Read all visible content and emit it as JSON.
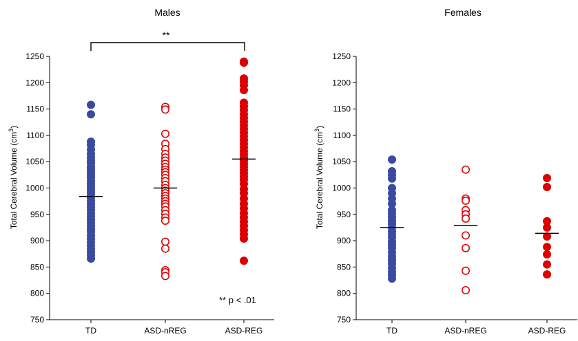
{
  "chart_data": [
    {
      "type": "scatter",
      "title": "Males",
      "ylabel": "Total Cerebral Volume (cm",
      "ylabel_sup": "3",
      "ylabel_close": ")",
      "categories": [
        "TD",
        "ASD-nREG",
        "ASD-REG"
      ],
      "ylim": [
        750,
        1250
      ],
      "yticks": [
        "750",
        "800",
        "850",
        "900",
        "950",
        "1000",
        "1050",
        "1100",
        "1150",
        "1200",
        "1250"
      ],
      "grid": false,
      "series": [
        {
          "category": "TD",
          "color": "#3a4aa0",
          "marker": "filled",
          "mean": 984,
          "values": [
            1158,
            1140,
            1088,
            1082,
            1073,
            1065,
            1058,
            1052,
            1047,
            1040,
            1035,
            1030,
            1025,
            1020,
            1013,
            1008,
            1003,
            998,
            992,
            987,
            982,
            976,
            970,
            964,
            958,
            952,
            946,
            940,
            934,
            928,
            922,
            917,
            910,
            903,
            897,
            891,
            884,
            878,
            872,
            866
          ]
        },
        {
          "category": "ASD-nREG",
          "color": "#dd0000",
          "marker": "open",
          "mean": 1000,
          "values": [
            1154,
            1149,
            1103,
            1084,
            1074,
            1065,
            1058,
            1052,
            1046,
            1040,
            1035,
            1030,
            1025,
            1019,
            1013,
            1006,
            1000,
            995,
            990,
            985,
            980,
            975,
            970,
            965,
            958,
            951,
            944,
            938,
            898,
            885,
            844,
            840,
            833
          ]
        },
        {
          "category": "ASD-REG",
          "color": "#dd0000",
          "marker": "filled",
          "mean": 1055,
          "values": [
            1240,
            1238,
            1208,
            1202,
            1195,
            1186,
            1162,
            1155,
            1148,
            1140,
            1133,
            1126,
            1119,
            1112,
            1105,
            1098,
            1091,
            1084,
            1077,
            1070,
            1064,
            1058,
            1052,
            1046,
            1040,
            1034,
            1028,
            1022,
            1016,
            1008,
            998,
            990,
            980,
            970,
            961,
            952,
            944,
            936,
            928,
            920,
            912,
            904,
            862
          ]
        }
      ],
      "annotations": {
        "bracket_label": "**",
        "note": "** p < .01"
      }
    },
    {
      "type": "scatter",
      "title": "Females",
      "ylabel": "Total Cerebral Volume (cm",
      "ylabel_sup": "3",
      "ylabel_close": ")",
      "categories": [
        "TD",
        "ASD-nREG",
        "ASD-REG"
      ],
      "ylim": [
        750,
        1250
      ],
      "yticks": [
        "750",
        "800",
        "850",
        "900",
        "950",
        "1000",
        "1050",
        "1100",
        "1150",
        "1200",
        "1250"
      ],
      "grid": false,
      "series": [
        {
          "category": "TD",
          "color": "#3a4aa0",
          "marker": "filled",
          "mean": 925,
          "values": [
            1054,
            1032,
            1025,
            1018,
            1000,
            990,
            980,
            970,
            958,
            952,
            945,
            938,
            932,
            925,
            918,
            912,
            906,
            898,
            892,
            886,
            878,
            870,
            863,
            856,
            848,
            841,
            835,
            828
          ]
        },
        {
          "category": "ASD-nREG",
          "color": "#dd0000",
          "marker": "open",
          "mean": 929,
          "values": [
            1035,
            980,
            976,
            958,
            950,
            942,
            910,
            886,
            843,
            806
          ]
        },
        {
          "category": "ASD-REG",
          "color": "#dd0000",
          "marker": "filled",
          "mean": 914,
          "values": [
            1019,
            1002,
            937,
            925,
            908,
            888,
            874,
            855,
            836
          ]
        }
      ]
    }
  ]
}
